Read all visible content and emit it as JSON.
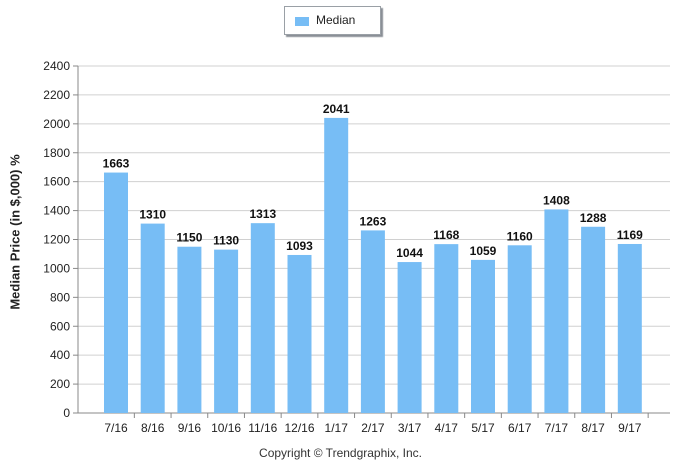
{
  "legend": {
    "label": "Median",
    "color": "#77bdf5"
  },
  "copyright": "Copyright © Trendgraphix, Inc.",
  "chart_data": {
    "type": "bar",
    "categories": [
      "7/16",
      "8/16",
      "9/16",
      "10/16",
      "11/16",
      "12/16",
      "1/17",
      "2/17",
      "3/17",
      "4/17",
      "5/17",
      "6/17",
      "7/17",
      "8/17",
      "9/17"
    ],
    "series": [
      {
        "name": "Median",
        "values": [
          1663,
          1310,
          1150,
          1130,
          1313,
          1093,
          2041,
          1263,
          1044,
          1168,
          1059,
          1160,
          1408,
          1288,
          1169
        ]
      }
    ],
    "data_labels": [
      "1663",
      "1310",
      "1150",
      "1130",
      "1313",
      "1093",
      "2041",
      "1263",
      "1044",
      "1168",
      "1059",
      "1160",
      "1408",
      "1288",
      "1169"
    ],
    "ylabel": "Median Price (in $,000) %",
    "xlabel": "",
    "ylim": [
      0,
      2400
    ],
    "yticks": [
      0,
      200,
      400,
      600,
      800,
      1000,
      1200,
      1400,
      1600,
      1800,
      2000,
      2200,
      2400
    ],
    "ytick_labels": [
      "0",
      "200",
      "400",
      "600",
      "800",
      "1000",
      "1200",
      "1400",
      "1600",
      "1800",
      "2000",
      "2200",
      "2400"
    ],
    "grid": true,
    "legend_position": "top-center"
  }
}
